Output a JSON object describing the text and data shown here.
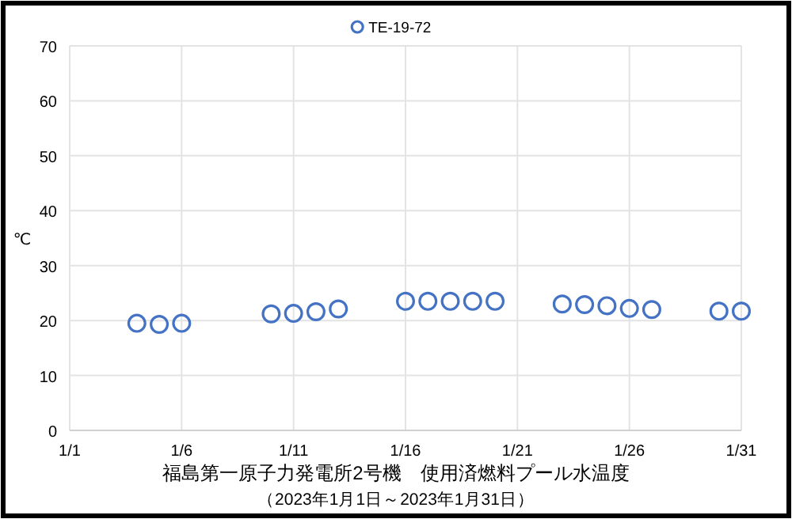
{
  "chart_data": {
    "type": "scatter",
    "title": "福島第一原子力発電所2号機　使用済燃料プール水温度",
    "subtitle": "（2023年1月1日～2023年1月31日）",
    "ylabel": "℃",
    "x": [
      "--01-04",
      "--01-05",
      "--01-06",
      "--01-10",
      "--01-11",
      "--01-12",
      "--01-13",
      "--01-16",
      "--01-17",
      "--01-18",
      "--01-19",
      "--01-20",
      "--01-23",
      "--01-24",
      "--01-25",
      "--01-26",
      "--01-27",
      "--01-30",
      "--01-31"
    ],
    "series": [
      {
        "name": "TE-19-72",
        "color": "#4472c4",
        "values": [
          19.5,
          19.3,
          19.5,
          21.2,
          21.3,
          21.6,
          22.1,
          23.5,
          23.5,
          23.5,
          23.5,
          23.5,
          23.0,
          22.9,
          22.7,
          22.2,
          22.0,
          21.7,
          21.7
        ]
      }
    ],
    "xlim": [
      "--01-01",
      "--01-31"
    ],
    "xticks": [
      {
        "value": "--01-01",
        "label": "1/1"
      },
      {
        "value": "--01-06",
        "label": "1/6"
      },
      {
        "value": "--01-11",
        "label": "1/11"
      },
      {
        "value": "--01-16",
        "label": "1/16"
      },
      {
        "value": "--01-21",
        "label": "1/21"
      },
      {
        "value": "--01-26",
        "label": "1/26"
      },
      {
        "value": "--01-31",
        "label": "1/31"
      }
    ],
    "ylim": [
      0,
      70
    ],
    "yticks": [
      0,
      10,
      20,
      30,
      40,
      50,
      60,
      70
    ],
    "grid": true,
    "legend": "top",
    "marker": "circle"
  }
}
